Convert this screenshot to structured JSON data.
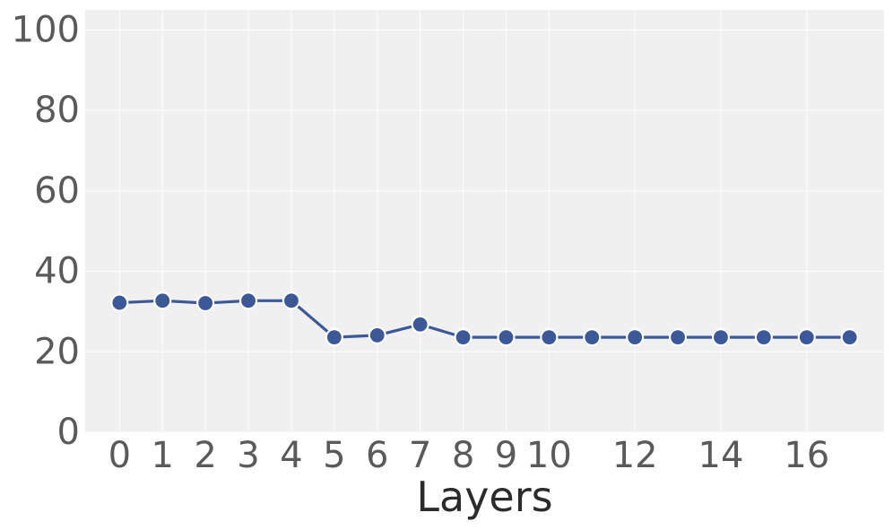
{
  "chart_data": {
    "type": "line",
    "title": "",
    "xlabel": "Layers",
    "ylabel": "",
    "x": [
      0,
      1,
      2,
      3,
      4,
      5,
      6,
      7,
      8,
      9,
      10,
      11,
      12,
      13,
      14,
      15,
      16,
      17
    ],
    "y": [
      32.2,
      32.7,
      32.1,
      32.7,
      32.7,
      23.6,
      24.1,
      26.8,
      23.6,
      23.6,
      23.6,
      23.6,
      23.6,
      23.6,
      23.6,
      23.6,
      23.6,
      23.6
    ],
    "xticks": [
      0,
      1,
      2,
      3,
      4,
      5,
      6,
      7,
      8,
      9,
      10,
      12,
      14,
      16
    ],
    "xtick_labels": [
      "0",
      "1",
      "2",
      "3",
      "4",
      "5",
      "6",
      "7",
      "8",
      "9",
      "10",
      "12",
      "14",
      "16"
    ],
    "yticks": [
      0,
      20,
      40,
      60,
      80,
      100
    ],
    "ytick_labels": [
      "0",
      "20",
      "40",
      "60",
      "80",
      "100"
    ],
    "xlim": [
      -0.8,
      17.8
    ],
    "ylim": [
      0,
      105
    ],
    "grid": true,
    "colors": {
      "plot_background": "#f0f0f0",
      "grid": "#ffffff",
      "line": "#3b5898",
      "marker_edge": "#ffffff"
    }
  }
}
